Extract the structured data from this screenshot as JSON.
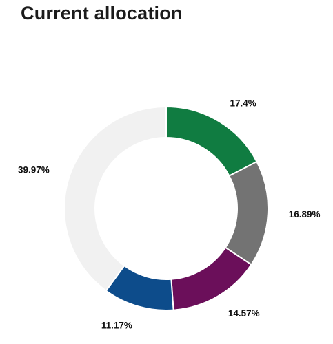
{
  "page": {
    "title": "Current allocation"
  },
  "chart_data": {
    "type": "pie",
    "variant": "donut",
    "title": "Current allocation",
    "slices": [
      {
        "label": "17.4%",
        "value": 17.4,
        "color": "#107c41"
      },
      {
        "label": "16.89%",
        "value": 16.89,
        "color": "#737373"
      },
      {
        "label": "14.57%",
        "value": 14.57,
        "color": "#6b0f5a"
      },
      {
        "label": "11.17%",
        "value": 11.17,
        "color": "#0d4c8b"
      },
      {
        "label": "39.97%",
        "value": 39.97,
        "color": "#f1f1f1"
      }
    ],
    "start_angle_degrees": 0,
    "direction": "clockwise",
    "legend": "none",
    "data_labels": "outside"
  }
}
